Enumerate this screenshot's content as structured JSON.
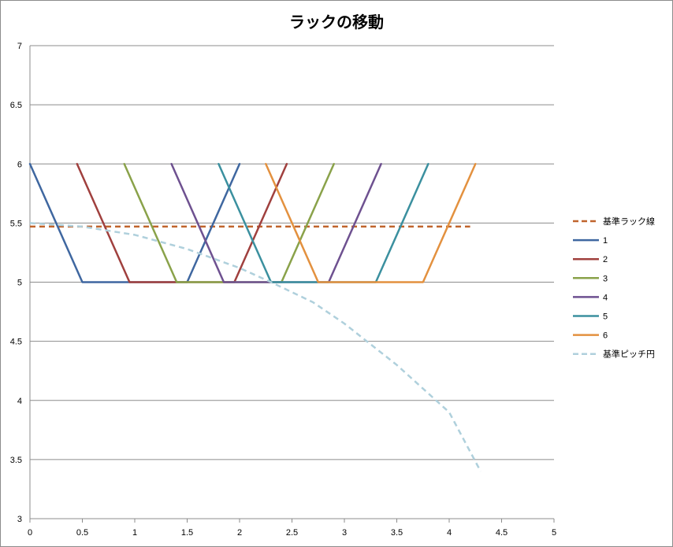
{
  "chart_data": {
    "type": "line",
    "title": "ラックの移動",
    "xlabel": "",
    "ylabel": "",
    "xlim": [
      0,
      5
    ],
    "ylim": [
      3,
      7
    ],
    "x_ticks": [
      "0",
      "0.5",
      "1",
      "1.5",
      "2",
      "2.5",
      "3",
      "3.5",
      "4",
      "4.5",
      "5"
    ],
    "y_ticks": [
      "3",
      "3.5",
      "4",
      "4.5",
      "5",
      "5.5",
      "6",
      "6.5",
      "7"
    ],
    "grid": "horizontal",
    "legend_position": "right",
    "series": [
      {
        "name": "基準ラック線",
        "color": "#c0642c",
        "dash": true,
        "points": [
          [
            0,
            5.47
          ],
          [
            4.2,
            5.47
          ]
        ]
      },
      {
        "name": "1",
        "color": "#3f67a0",
        "dash": false,
        "points": [
          [
            0,
            6.0
          ],
          [
            0.5,
            5.0
          ],
          [
            1.5,
            5.0
          ],
          [
            2.0,
            6.0
          ]
        ]
      },
      {
        "name": "2",
        "color": "#a0403e",
        "dash": false,
        "points": [
          [
            0.45,
            6.0
          ],
          [
            0.95,
            5.0
          ],
          [
            1.95,
            5.0
          ],
          [
            2.45,
            6.0
          ]
        ]
      },
      {
        "name": "3",
        "color": "#8aa24a",
        "dash": false,
        "points": [
          [
            0.9,
            6.0
          ],
          [
            1.4,
            5.0
          ],
          [
            2.4,
            5.0
          ],
          [
            2.9,
            6.0
          ]
        ]
      },
      {
        "name": "4",
        "color": "#6e5190",
        "dash": false,
        "points": [
          [
            1.35,
            6.0
          ],
          [
            1.85,
            5.0
          ],
          [
            2.85,
            5.0
          ],
          [
            3.35,
            6.0
          ]
        ]
      },
      {
        "name": "5",
        "color": "#3b909f",
        "dash": false,
        "points": [
          [
            1.8,
            6.0
          ],
          [
            2.3,
            5.0
          ],
          [
            3.3,
            5.0
          ],
          [
            3.8,
            6.0
          ]
        ]
      },
      {
        "name": "6",
        "color": "#e3913f",
        "dash": false,
        "points": [
          [
            2.25,
            6.0
          ],
          [
            2.75,
            5.0
          ],
          [
            3.75,
            5.0
          ],
          [
            4.25,
            6.0
          ]
        ]
      },
      {
        "name": "基準ピッチ円",
        "color": "#afd0dc",
        "dash": true,
        "points": [
          [
            0,
            5.5
          ],
          [
            0.5,
            5.47
          ],
          [
            1.0,
            5.4
          ],
          [
            1.5,
            5.28
          ],
          [
            2.0,
            5.12
          ],
          [
            2.3,
            5.0
          ],
          [
            2.7,
            4.83
          ],
          [
            3.0,
            4.65
          ],
          [
            3.5,
            4.3
          ],
          [
            4.0,
            3.9
          ],
          [
            4.3,
            3.4
          ]
        ]
      }
    ]
  }
}
